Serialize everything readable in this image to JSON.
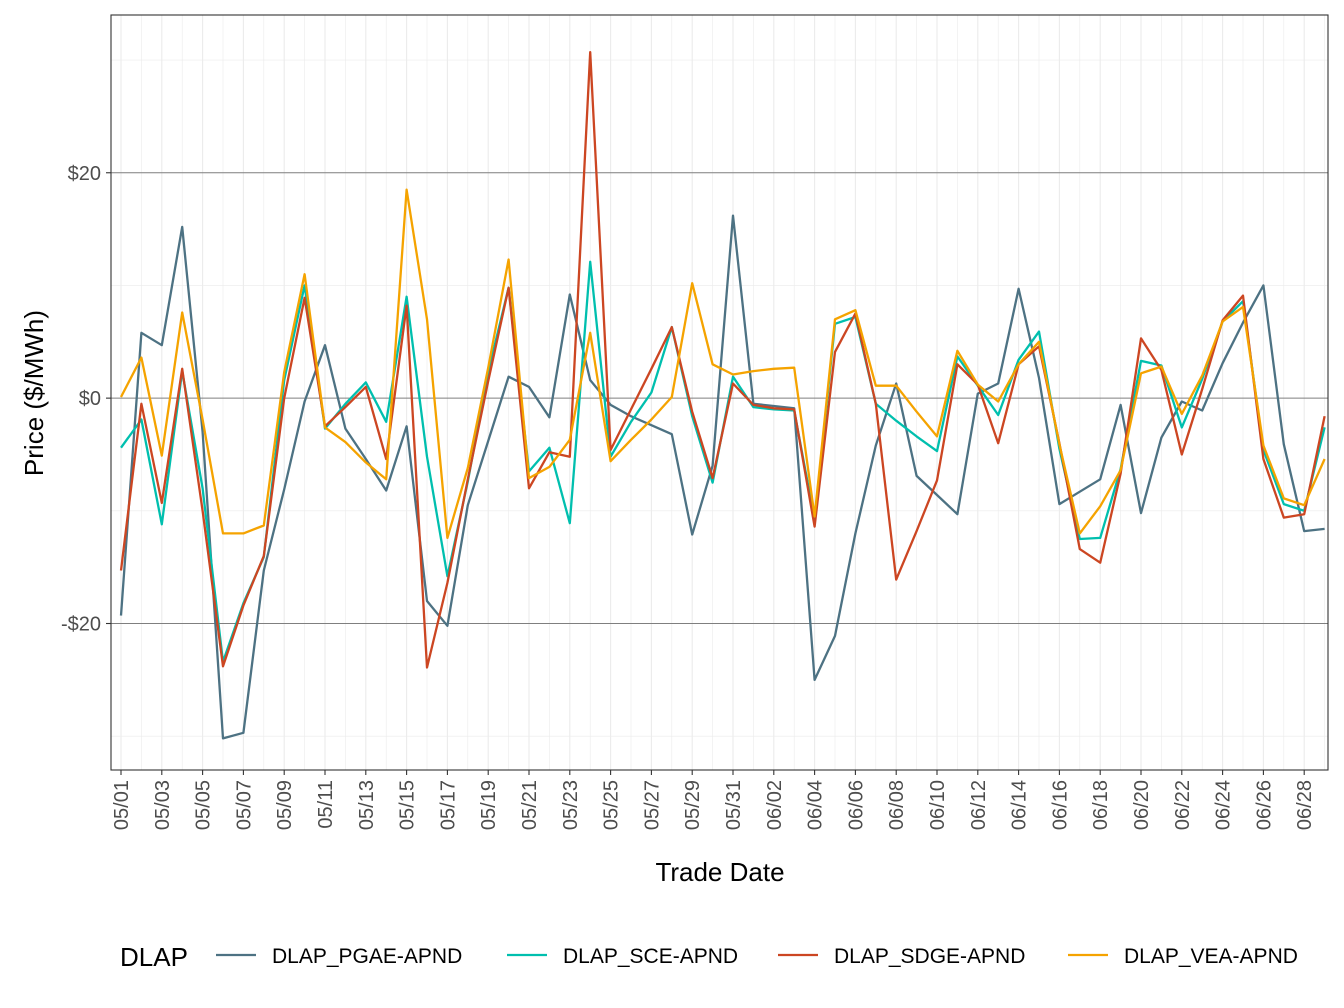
{
  "chart_data": {
    "type": "line",
    "title": "",
    "xlabel": "Trade Date",
    "ylabel": "Price ($/MWh)",
    "y_ticks": [
      {
        "value": -20,
        "label": "-$20"
      },
      {
        "value": 0,
        "label": "$0"
      },
      {
        "value": 20,
        "label": "$20"
      }
    ],
    "ylim": [
      -33,
      34
    ],
    "grid": true,
    "legend_position": "bottom",
    "legend_title": "DLAP",
    "x_tick_labels": [
      "05/01",
      "05/03",
      "05/05",
      "05/07",
      "05/09",
      "05/11",
      "05/13",
      "05/15",
      "05/17",
      "05/19",
      "05/21",
      "05/23",
      "05/25",
      "05/27",
      "05/29",
      "05/31",
      "06/02",
      "06/04",
      "06/06",
      "06/08",
      "06/10",
      "06/12",
      "06/14",
      "06/16",
      "06/18",
      "06/20",
      "06/22",
      "06/24",
      "06/26",
      "06/28"
    ],
    "x": [
      "05/01",
      "05/02",
      "05/03",
      "05/04",
      "05/05",
      "05/06",
      "05/07",
      "05/08",
      "05/09",
      "05/10",
      "05/11",
      "05/12",
      "05/13",
      "05/14",
      "05/15",
      "05/16",
      "05/17",
      "05/18",
      "05/19",
      "05/20",
      "05/21",
      "05/22",
      "05/23",
      "05/24",
      "05/25",
      "05/26",
      "05/27",
      "05/28",
      "05/29",
      "05/30",
      "05/31",
      "06/01",
      "06/02",
      "06/03",
      "06/04",
      "06/05",
      "06/06",
      "06/07",
      "06/08",
      "06/09",
      "06/10",
      "06/11",
      "06/12",
      "06/13",
      "06/14",
      "06/15",
      "06/16",
      "06/17",
      "06/18",
      "06/19",
      "06/20",
      "06/21",
      "06/22",
      "06/23",
      "06/24",
      "06/25",
      "06/26",
      "06/27",
      "06/28",
      "06/29"
    ],
    "series": [
      {
        "name": "DLAP_PGAE-APND",
        "color": "#4d7283",
        "values": [
          -19.3,
          5.8,
          4.7,
          15.2,
          -3.0,
          -30.2,
          -29.7,
          -15.3,
          -8.1,
          -0.3,
          4.7,
          -2.7,
          -5.4,
          -8.2,
          -2.5,
          -18.0,
          -20.2,
          -9.5,
          -3.8,
          1.9,
          1.0,
          -1.7,
          9.2,
          1.6,
          -0.6,
          -1.6,
          -2.4,
          -3.2,
          -12.1,
          -6.0,
          16.2,
          -0.5,
          -0.7,
          -0.9,
          -25.0,
          -21.1,
          -12.0,
          -4.2,
          1.3,
          -6.9,
          -8.6,
          -10.3,
          0.4,
          1.3,
          9.7,
          1.8,
          -9.4,
          -8.3,
          -7.2,
          -0.6,
          -10.2,
          -3.5,
          -0.3,
          -1.1,
          3.1,
          6.7,
          10.0,
          -4.1,
          -11.8,
          -11.6
        ]
      },
      {
        "name": "DLAP_SCE-APND",
        "color": "#00bfae",
        "values": [
          -4.4,
          -1.9,
          -11.2,
          2.4,
          -8.0,
          -23.4,
          -18.2,
          -14.1,
          1.6,
          10.0,
          -2.7,
          -0.5,
          1.4,
          -2.1,
          9.0,
          -5.2,
          -15.8,
          -7.4,
          2.3,
          9.8,
          -6.5,
          -4.4,
          -11.1,
          12.1,
          -5.2,
          -2.1,
          0.5,
          6.3,
          -1.6,
          -7.5,
          1.9,
          -0.8,
          -1.0,
          -1.1,
          -10.8,
          6.6,
          7.2,
          -0.5,
          -2.0,
          -3.4,
          -4.7,
          3.7,
          1.1,
          -1.5,
          3.4,
          5.9,
          -4.5,
          -12.5,
          -12.4,
          -6.3,
          3.3,
          2.9,
          -2.6,
          1.7,
          6.8,
          8.6,
          -4.6,
          -9.4,
          -10.0,
          -2.6
        ]
      },
      {
        "name": "DLAP_SDGE-APND",
        "color": "#cc4622",
        "values": [
          -15.3,
          -0.5,
          -9.3,
          2.6,
          -10.0,
          -23.8,
          -18.4,
          -14.0,
          0.0,
          8.9,
          -2.5,
          -0.8,
          1.0,
          -5.4,
          8.2,
          -23.9,
          -16.4,
          -7.2,
          1.5,
          9.8,
          -8.0,
          -4.8,
          -5.2,
          30.7,
          -4.6,
          -1.0,
          2.6,
          6.3,
          -1.2,
          -7.1,
          1.3,
          -0.6,
          -0.9,
          -1.0,
          -11.4,
          4.1,
          7.5,
          -0.5,
          -16.1,
          -11.8,
          -7.3,
          3.0,
          1.2,
          -4.0,
          3.0,
          4.6,
          -4.0,
          -13.4,
          -14.6,
          -6.7,
          5.3,
          2.5,
          -5.0,
          0.8,
          6.9,
          9.1,
          -5.4,
          -10.6,
          -10.3,
          -1.6
        ]
      },
      {
        "name": "DLAP_VEA-APND",
        "color": "#f5a300",
        "values": [
          0.1,
          3.6,
          -5.1,
          7.6,
          -1.9,
          -12.0,
          -12.0,
          -11.3,
          2.3,
          11.0,
          -2.6,
          -3.9,
          -5.7,
          -7.2,
          18.5,
          7.0,
          -12.4,
          -6.2,
          2.7,
          12.3,
          -7.1,
          -6.1,
          -3.7,
          5.8,
          -5.6,
          -3.7,
          -1.9,
          0.1,
          10.2,
          3.0,
          2.1,
          2.4,
          2.6,
          2.7,
          -10.5,
          7.0,
          7.8,
          1.1,
          1.1,
          -1.2,
          -3.4,
          4.2,
          1.2,
          -0.3,
          3.0,
          5.0,
          -4.1,
          -12.0,
          -9.6,
          -6.4,
          2.2,
          2.8,
          -1.4,
          2.0,
          6.8,
          8.1,
          -4.2,
          -8.9,
          -9.5,
          -5.4
        ]
      }
    ]
  }
}
